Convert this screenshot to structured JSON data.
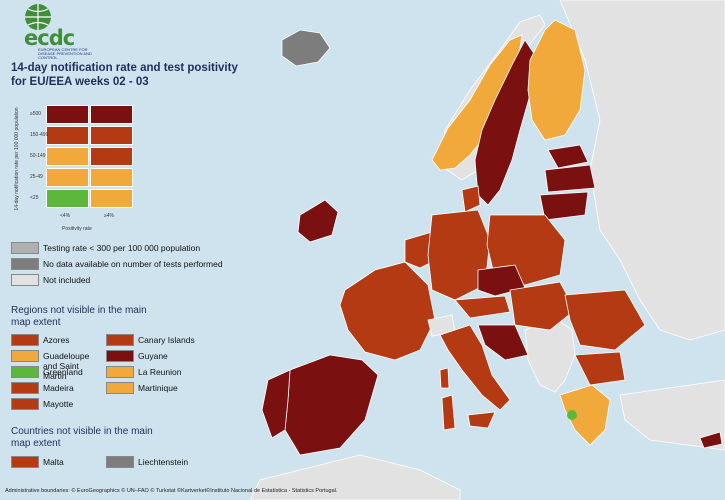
{
  "title": "14-day notification rate and test positivity for EU/EEA weeks 02 - 03",
  "logo": {
    "text": "ecdc",
    "sub": "EUROPEAN CENTRE FOR DISEASE PREVENTION AND CONTROL"
  },
  "matrix": {
    "y_axis_label": "14-day notification rate per 100 000 population",
    "x_axis_label": "Positivity rate",
    "row_labels": [
      "≥500",
      "150-499",
      "50-149",
      "25-49",
      "<25"
    ],
    "col_labels": [
      "<4%",
      "≥4%"
    ],
    "cells": [
      [
        "#7a1010",
        "#7a1010"
      ],
      [
        "#b33a12",
        "#b33a12"
      ],
      [
        "#f0a93a",
        "#b33a12"
      ],
      [
        "#f0a93a",
        "#f0a93a"
      ],
      [
        "#5cb83a",
        "#f0a93a"
      ]
    ]
  },
  "legend_top": [
    {
      "label": "Testing rate < 300 per 100 000 population",
      "color": "#b0b0b0"
    },
    {
      "label": "No data available on number of tests performed",
      "color": "#7d7d7d"
    },
    {
      "label": "Not included",
      "color": "#e2e2e2"
    }
  ],
  "regions_title": "Regions not visible in the main map extent",
  "regions": [
    {
      "label": "Azores",
      "color": "#b33a12"
    },
    {
      "label": "Guadeloupe and Saint Martin",
      "color": "#f0a93a"
    },
    {
      "label": "Greenland",
      "color": "#5cb83a"
    },
    {
      "label": "Madeira",
      "color": "#b33a12"
    },
    {
      "label": "Mayotte",
      "color": "#b33a12"
    },
    {
      "label": "Canary Islands",
      "color": "#b33a12"
    },
    {
      "label": "Guyane",
      "color": "#7a1010"
    },
    {
      "label": "La Reunion",
      "color": "#f0a93a"
    },
    {
      "label": "Martinique",
      "color": "#f0a93a"
    }
  ],
  "countries_title": "Countries not visible in the main map extent",
  "countries": [
    {
      "label": "Malta",
      "color": "#b33a12"
    },
    {
      "label": "Liechtenstein",
      "color": "#7d7d7d"
    }
  ],
  "credits": "Administrative boundaries: © EuroGeographics © UN–FAO © Turkstat ©Kartverket©Instituto Nacional de Estatística - Statistics Portugal.",
  "colors": {
    "sea": "#cfe3ee",
    "land_outside": "#e2e2e2",
    "dark_red": "#7a1010",
    "red": "#b33a12",
    "orange": "#f0a93a",
    "green": "#5cb83a",
    "grey": "#b0b0b0"
  }
}
